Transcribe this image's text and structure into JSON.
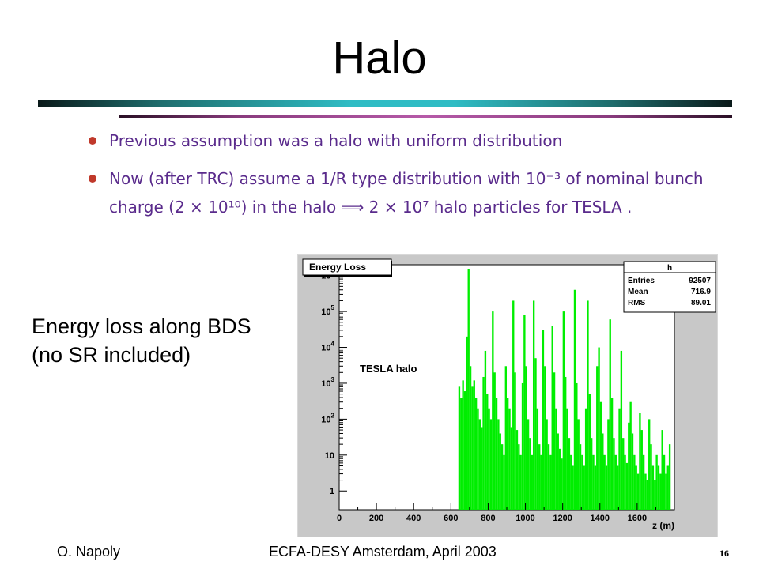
{
  "slide": {
    "title": "Halo",
    "bullets": [
      "Previous assumption was a halo with uniform distribution",
      "Now (after TRC) assume a 1/R type distribution with 10⁻³ of nominal bunch charge (2 × 10¹⁰) in the halo ⟹ 2 × 10⁷ halo particles for TESLA ."
    ],
    "side_text": [
      "Energy loss along BDS",
      "(no SR included)"
    ],
    "footer": {
      "author": "O. Napoly",
      "event": "ECFA-DESY Amsterdam, April 2003",
      "page": "16"
    }
  },
  "colors": {
    "bar": "#00ee00",
    "plot_bg": "#c8c8c8",
    "rule_top": "#2fbcc4",
    "rule_bottom": "#b65aa8",
    "bullet_text": "#5a2b8c",
    "bullet_dot": "#c0392b"
  },
  "chart_data": {
    "type": "bar",
    "title": "Energy Loss",
    "annotation": "TESLA halo",
    "xlabel": "z (m)",
    "ylabel": "",
    "log_y": true,
    "xlim": [
      0,
      1800
    ],
    "ylim": [
      0.3,
      2000000
    ],
    "x_ticks": [
      "0",
      "200",
      "400",
      "600",
      "800",
      "1000",
      "1200",
      "1400",
      "1600"
    ],
    "y_ticks": [
      "1",
      "10",
      "10^2",
      "10^3",
      "10^4",
      "10^5",
      "10^6"
    ],
    "stats": {
      "name": "h",
      "rows": [
        [
          "Entries",
          "92507"
        ],
        [
          "Mean",
          "716.9"
        ],
        [
          "RMS",
          "89.01"
        ]
      ]
    },
    "x": [
      640,
      650,
      660,
      670,
      680,
      690,
      700,
      710,
      720,
      730,
      740,
      750,
      760,
      770,
      780,
      790,
      800,
      810,
      820,
      830,
      840,
      850,
      860,
      870,
      880,
      890,
      900,
      910,
      920,
      930,
      940,
      950,
      960,
      970,
      980,
      990,
      1000,
      1010,
      1020,
      1030,
      1040,
      1050,
      1060,
      1070,
      1080,
      1090,
      1100,
      1110,
      1120,
      1130,
      1140,
      1150,
      1160,
      1170,
      1180,
      1190,
      1200,
      1210,
      1220,
      1230,
      1240,
      1250,
      1260,
      1270,
      1280,
      1290,
      1300,
      1310,
      1320,
      1330,
      1340,
      1350,
      1360,
      1370,
      1380,
      1390,
      1400,
      1410,
      1420,
      1430,
      1440,
      1450,
      1460,
      1470,
      1480,
      1490,
      1500,
      1510,
      1520,
      1530,
      1540,
      1550,
      1560,
      1570,
      1580,
      1590,
      1600,
      1610,
      1620,
      1630,
      1640,
      1650,
      1660,
      1670,
      1680,
      1690,
      1700,
      1710,
      1720,
      1730,
      1740,
      1750,
      1760,
      1770
    ],
    "values": [
      800,
      400,
      1200,
      600,
      20000,
      1500000,
      3000,
      800,
      1200,
      400,
      200,
      100,
      60,
      1500,
      8000,
      500,
      200,
      100,
      100000,
      2000,
      400,
      100,
      40,
      20,
      10,
      3000,
      400,
      200,
      60,
      200000,
      2000,
      50,
      20,
      10,
      1000,
      80000,
      3000,
      100,
      30,
      10,
      200000,
      5000,
      200,
      20,
      10,
      30000,
      3000,
      100,
      20,
      10,
      40000,
      2000,
      200,
      40,
      15,
      8,
      100000,
      1500,
      200,
      30,
      10,
      5,
      400000,
      1000,
      100,
      20,
      10,
      5,
      200,
      200000,
      500,
      30,
      10,
      5,
      3000,
      10000,
      300,
      40,
      10,
      5,
      100,
      60000,
      400,
      30,
      10,
      5,
      200,
      8000,
      30,
      10,
      6,
      80,
      300,
      40,
      10,
      5,
      3,
      150,
      50,
      10,
      3,
      2,
      100,
      20,
      5,
      2,
      10,
      5,
      3,
      50,
      10,
      3,
      5,
      20
    ]
  }
}
